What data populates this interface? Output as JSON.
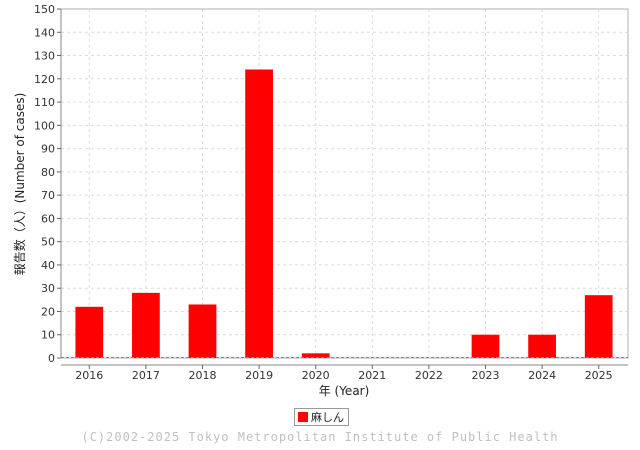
{
  "chart_data": {
    "type": "bar",
    "categories": [
      "2016",
      "2017",
      "2018",
      "2019",
      "2020",
      "2021",
      "2022",
      "2023",
      "2024",
      "2025"
    ],
    "series": [
      {
        "name": "麻しん",
        "values": [
          22,
          28,
          23,
          124,
          2,
          0,
          0,
          10,
          10,
          27
        ],
        "color": "#ff0000"
      }
    ],
    "xlabel": "年 (Year)",
    "ylabel": "報告数（人）(Number of cases)",
    "ylim": [
      0,
      150
    ],
    "yticks": [
      0,
      10,
      20,
      30,
      40,
      50,
      60,
      70,
      80,
      90,
      100,
      110,
      120,
      130,
      140,
      150
    ],
    "grid": true,
    "legend_position": "bottom-center"
  },
  "legend": {
    "label": "麻しん",
    "color": "#ff0000"
  },
  "footer": {
    "copyright": "(C)2002-2025 Tokyo Metropolitan Institute of Public Health"
  }
}
